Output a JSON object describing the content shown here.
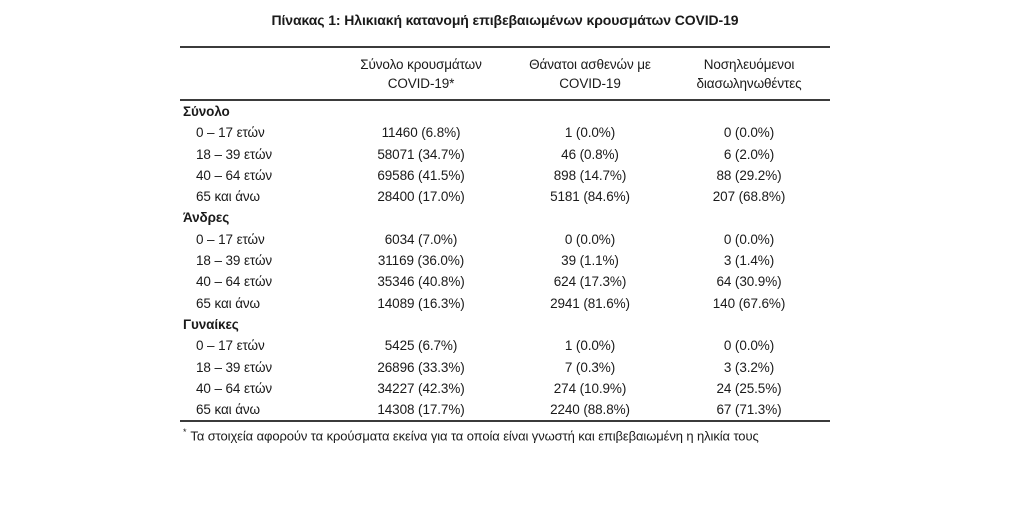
{
  "title": "Πίνακας 1: Ηλικιακή κατανομή επιβεβαιωμένων κρουσμάτων COVID-19",
  "theme": {
    "text_color": "#1a1a1a",
    "rule_color": "#3b3b3b",
    "background_color": "#ffffff"
  },
  "table": {
    "columns": [
      {
        "line1": "Σύνολο κρουσμάτων",
        "line2": "COVID-19*"
      },
      {
        "line1": "Θάνατοι ασθενών με",
        "line2": "COVID-19"
      },
      {
        "line1": "Νοσηλευόμενοι",
        "line2": "διασωληνωθέντες"
      }
    ],
    "sections": [
      {
        "label": "Σύνολο",
        "rows": [
          {
            "label": "0 – 17 ετών",
            "cases": "11460 (6.8%)",
            "deaths": "1 (0.0%)",
            "intubated": "0 (0.0%)"
          },
          {
            "label": "18 – 39 ετών",
            "cases": "58071 (34.7%)",
            "deaths": "46 (0.8%)",
            "intubated": "6 (2.0%)"
          },
          {
            "label": "40 – 64 ετών",
            "cases": "69586 (41.5%)",
            "deaths": "898 (14.7%)",
            "intubated": "88 (29.2%)"
          },
          {
            "label": "65 και άνω",
            "cases": "28400 (17.0%)",
            "deaths": "5181 (84.6%)",
            "intubated": "207 (68.8%)"
          }
        ]
      },
      {
        "label": "Άνδρες",
        "rows": [
          {
            "label": "0 – 17 ετών",
            "cases": "6034 (7.0%)",
            "deaths": "0 (0.0%)",
            "intubated": "0 (0.0%)"
          },
          {
            "label": "18 – 39 ετών",
            "cases": "31169 (36.0%)",
            "deaths": "39 (1.1%)",
            "intubated": "3 (1.4%)"
          },
          {
            "label": "40 – 64 ετών",
            "cases": "35346 (40.8%)",
            "deaths": "624 (17.3%)",
            "intubated": "64 (30.9%)"
          },
          {
            "label": "65 και άνω",
            "cases": "14089 (16.3%)",
            "deaths": "2941 (81.6%)",
            "intubated": "140 (67.6%)"
          }
        ]
      },
      {
        "label": "Γυναίκες",
        "rows": [
          {
            "label": "0 – 17 ετών",
            "cases": "5425 (6.7%)",
            "deaths": "1 (0.0%)",
            "intubated": "0 (0.0%)"
          },
          {
            "label": "18 – 39 ετών",
            "cases": "26896 (33.3%)",
            "deaths": "7 (0.3%)",
            "intubated": "3 (3.2%)"
          },
          {
            "label": "40 – 64 ετών",
            "cases": "34227 (42.3%)",
            "deaths": "274 (10.9%)",
            "intubated": "24 (25.5%)"
          },
          {
            "label": "65 και άνω",
            "cases": "14308 (17.7%)",
            "deaths": "2240 (88.8%)",
            "intubated": "67 (71.3%)"
          }
        ]
      }
    ],
    "footnote": {
      "marker": "*",
      "text": "Τα στοιχεία αφορούν τα κρούσματα εκείνα για τα οποία είναι γνωστή και επιβεβαιωμένη η ηλικία τους"
    }
  }
}
